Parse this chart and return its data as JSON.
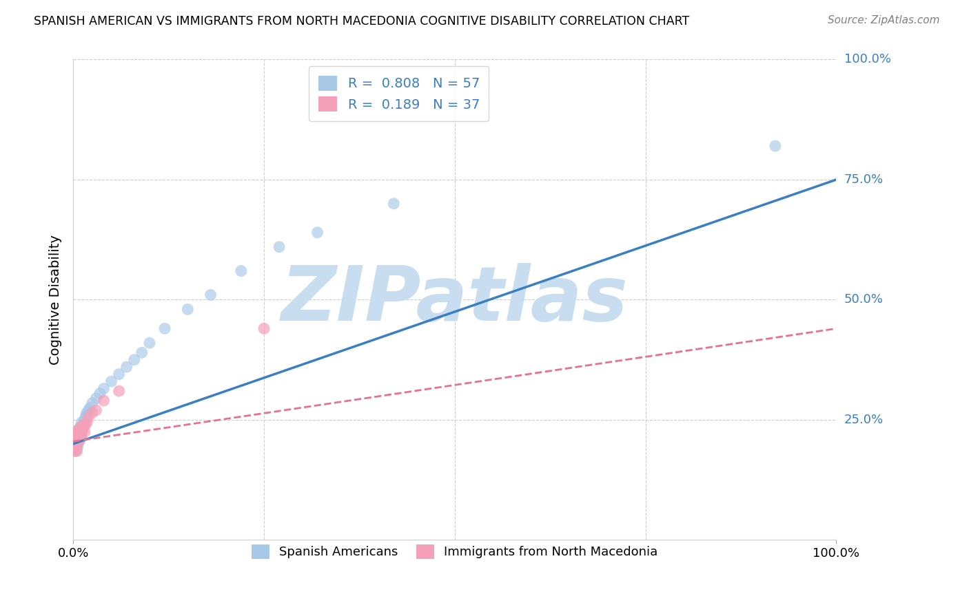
{
  "title": "SPANISH AMERICAN VS IMMIGRANTS FROM NORTH MACEDONIA COGNITIVE DISABILITY CORRELATION CHART",
  "source": "Source: ZipAtlas.com",
  "ylabel": "Cognitive Disability",
  "xlim": [
    0.0,
    1.0
  ],
  "ylim": [
    0.0,
    1.0
  ],
  "ytick_labels": [
    "25.0%",
    "50.0%",
    "75.0%",
    "100.0%"
  ],
  "ytick_positions": [
    0.25,
    0.5,
    0.75,
    1.0
  ],
  "xtick_labels": [
    "0.0%",
    "100.0%"
  ],
  "xtick_positions": [
    0.0,
    1.0
  ],
  "blue_R": 0.808,
  "blue_N": 57,
  "pink_R": 0.189,
  "pink_N": 37,
  "blue_color": "#a8c8e8",
  "pink_color": "#f4a0b8",
  "blue_line_color": "#3a7fc1",
  "pink_line_color": "#e87090",
  "ytick_color": "#3a7fc1",
  "watermark_text": "ZIPatlas",
  "watermark_color": "#c8ddf0",
  "background_color": "#ffffff",
  "grid_color": "#cccccc",
  "legend_label_blue": "Spanish Americans",
  "legend_label_pink": "Immigrants from North Macedonia",
  "blue_line_x0": 0.0,
  "blue_line_y0": 0.2,
  "blue_line_x1": 1.0,
  "blue_line_y1": 0.75,
  "pink_line_x0": 0.0,
  "pink_line_y0": 0.205,
  "pink_line_x1": 1.0,
  "pink_line_y1": 0.44,
  "blue_scatter_x": [
    0.001,
    0.001,
    0.001,
    0.002,
    0.002,
    0.002,
    0.002,
    0.003,
    0.003,
    0.003,
    0.004,
    0.004,
    0.004,
    0.005,
    0.005,
    0.005,
    0.006,
    0.006,
    0.006,
    0.007,
    0.007,
    0.008,
    0.008,
    0.009,
    0.009,
    0.01,
    0.01,
    0.011,
    0.011,
    0.012,
    0.013,
    0.014,
    0.015,
    0.016,
    0.017,
    0.018,
    0.019,
    0.02,
    0.022,
    0.025,
    0.03,
    0.035,
    0.04,
    0.05,
    0.06,
    0.07,
    0.08,
    0.09,
    0.1,
    0.12,
    0.15,
    0.18,
    0.22,
    0.27,
    0.32,
    0.42,
    0.92
  ],
  "blue_scatter_y": [
    0.195,
    0.205,
    0.215,
    0.19,
    0.2,
    0.21,
    0.22,
    0.185,
    0.195,
    0.215,
    0.2,
    0.21,
    0.22,
    0.19,
    0.2,
    0.215,
    0.195,
    0.205,
    0.22,
    0.21,
    0.23,
    0.205,
    0.225,
    0.21,
    0.235,
    0.215,
    0.23,
    0.22,
    0.245,
    0.23,
    0.24,
    0.245,
    0.25,
    0.255,
    0.26,
    0.265,
    0.26,
    0.27,
    0.275,
    0.285,
    0.295,
    0.305,
    0.315,
    0.33,
    0.345,
    0.36,
    0.375,
    0.39,
    0.41,
    0.44,
    0.48,
    0.51,
    0.56,
    0.61,
    0.64,
    0.7,
    0.82
  ],
  "pink_scatter_x": [
    0.001,
    0.001,
    0.001,
    0.002,
    0.002,
    0.002,
    0.003,
    0.003,
    0.003,
    0.004,
    0.004,
    0.005,
    0.005,
    0.005,
    0.006,
    0.006,
    0.007,
    0.007,
    0.008,
    0.008,
    0.009,
    0.009,
    0.01,
    0.01,
    0.011,
    0.012,
    0.013,
    0.014,
    0.015,
    0.016,
    0.018,
    0.02,
    0.025,
    0.03,
    0.04,
    0.06,
    0.25
  ],
  "pink_scatter_y": [
    0.19,
    0.2,
    0.215,
    0.185,
    0.195,
    0.22,
    0.195,
    0.205,
    0.225,
    0.2,
    0.215,
    0.185,
    0.2,
    0.22,
    0.21,
    0.225,
    0.205,
    0.22,
    0.21,
    0.23,
    0.215,
    0.23,
    0.215,
    0.235,
    0.225,
    0.23,
    0.235,
    0.24,
    0.225,
    0.24,
    0.245,
    0.255,
    0.265,
    0.27,
    0.29,
    0.31,
    0.44
  ]
}
